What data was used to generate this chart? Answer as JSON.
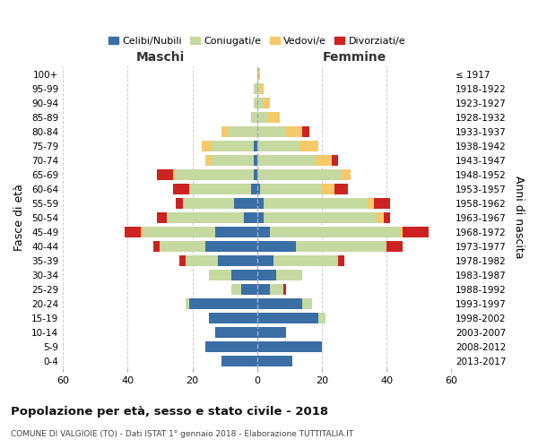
{
  "age_groups": [
    "100+",
    "95-99",
    "90-94",
    "85-89",
    "80-84",
    "75-79",
    "70-74",
    "65-69",
    "60-64",
    "55-59",
    "50-54",
    "45-49",
    "40-44",
    "35-39",
    "30-34",
    "25-29",
    "20-24",
    "15-19",
    "10-14",
    "5-9",
    "0-4"
  ],
  "birth_years": [
    "≤ 1917",
    "1918-1922",
    "1923-1927",
    "1928-1932",
    "1933-1937",
    "1938-1942",
    "1943-1947",
    "1948-1952",
    "1953-1957",
    "1958-1962",
    "1963-1967",
    "1968-1972",
    "1973-1977",
    "1978-1982",
    "1983-1987",
    "1988-1992",
    "1993-1997",
    "1998-2002",
    "2003-2007",
    "2008-2012",
    "2013-2017"
  ],
  "males": {
    "celibe": [
      0,
      0,
      0,
      0,
      0,
      1,
      1,
      1,
      2,
      7,
      4,
      13,
      16,
      12,
      8,
      5,
      21,
      15,
      13,
      16,
      11
    ],
    "coniugato": [
      0,
      1,
      1,
      2,
      9,
      13,
      13,
      24,
      19,
      16,
      24,
      22,
      14,
      10,
      7,
      3,
      1,
      0,
      0,
      0,
      0
    ],
    "vedovo": [
      0,
      0,
      0,
      0,
      2,
      3,
      2,
      1,
      0,
      0,
      0,
      1,
      0,
      0,
      0,
      0,
      0,
      0,
      0,
      0,
      0
    ],
    "divorziato": [
      0,
      0,
      0,
      0,
      0,
      0,
      0,
      5,
      5,
      2,
      3,
      5,
      2,
      2,
      0,
      0,
      0,
      0,
      0,
      0,
      0
    ]
  },
  "females": {
    "nubile": [
      0,
      0,
      0,
      0,
      0,
      0,
      0,
      0,
      1,
      2,
      2,
      4,
      12,
      5,
      6,
      4,
      14,
      19,
      9,
      20,
      11
    ],
    "coniugata": [
      0,
      1,
      2,
      3,
      9,
      13,
      18,
      26,
      19,
      32,
      35,
      40,
      28,
      20,
      8,
      4,
      3,
      2,
      0,
      0,
      0
    ],
    "vedova": [
      1,
      1,
      2,
      4,
      5,
      6,
      5,
      3,
      4,
      2,
      2,
      1,
      0,
      0,
      0,
      0,
      0,
      0,
      0,
      0,
      0
    ],
    "divorziata": [
      0,
      0,
      0,
      0,
      2,
      0,
      2,
      0,
      4,
      5,
      2,
      8,
      5,
      2,
      0,
      1,
      0,
      0,
      0,
      0,
      0
    ]
  },
  "colors": {
    "celibe": "#3a6ea5",
    "coniugato": "#c5d9a0",
    "vedovo": "#f5c96a",
    "divorziato": "#cc2222"
  },
  "xlim": 60,
  "title": "Popolazione per età, sesso e stato civile - 2018",
  "subtitle": "COMUNE DI VALGIOIE (TO) - Dati ISTAT 1° gennaio 2018 - Elaborazione TUTTITALIA.IT",
  "ylabel": "Fasce di età",
  "ylabel2": "Anni di nascita",
  "xlabel_maschi": "Maschi",
  "xlabel_femmine": "Femmine",
  "legend_labels": [
    "Celibi/Nubili",
    "Coniugati/e",
    "Vedovi/e",
    "Divorziati/e"
  ],
  "background_color": "#ffffff",
  "grid_color": "#cccccc"
}
